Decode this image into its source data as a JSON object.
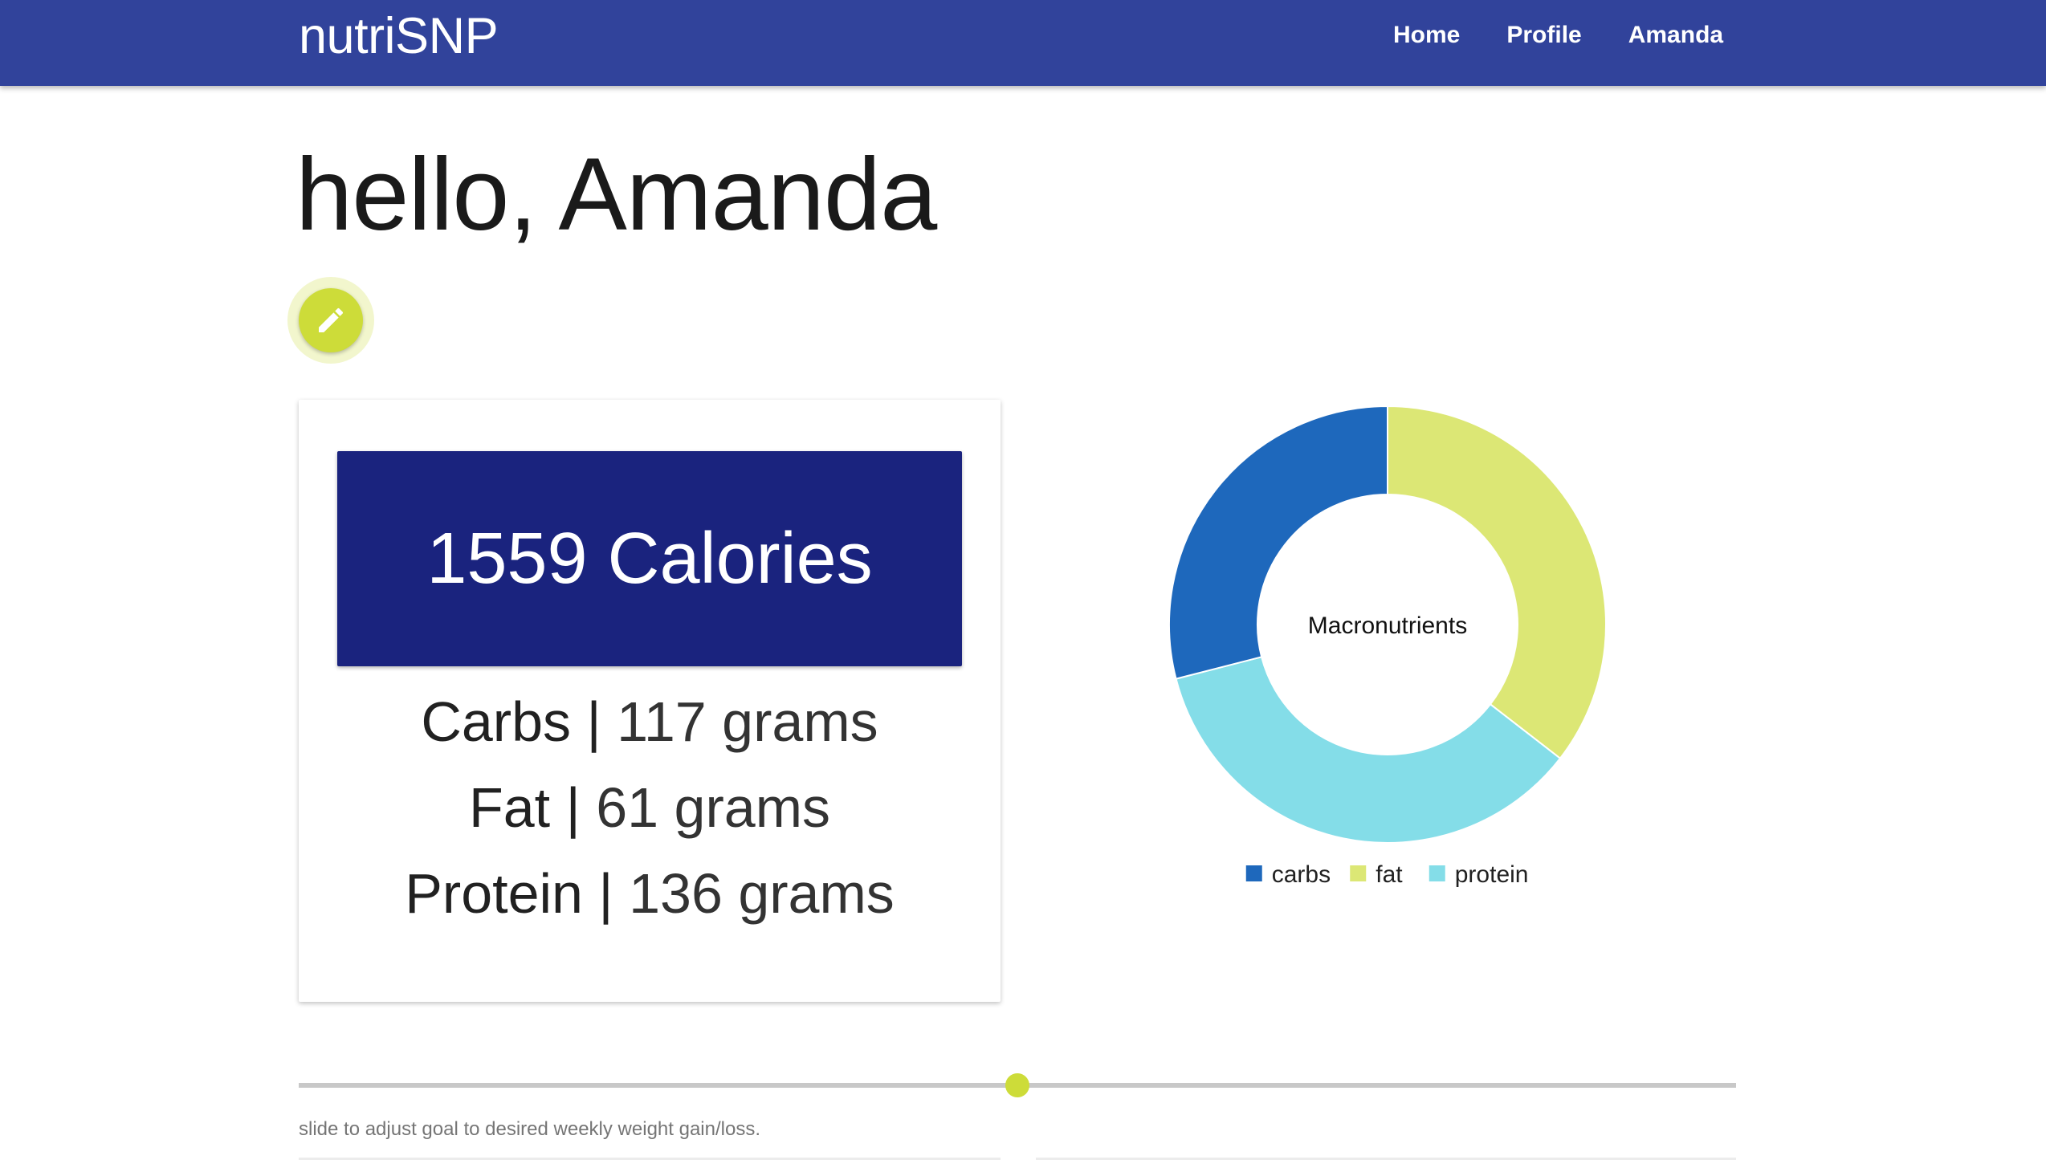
{
  "navbar": {
    "brand": "nutriSNP",
    "links": [
      {
        "label": "Home"
      },
      {
        "label": "Profile"
      },
      {
        "label": "Amanda"
      }
    ],
    "color": "#31439b"
  },
  "greeting": "hello, Amanda",
  "edit_button": {
    "icon": "pencil-icon",
    "color": "#cddc39"
  },
  "calories": {
    "label": "1559 Calories",
    "color": "#1a237e"
  },
  "macros": [
    {
      "name": "Carbs",
      "sep": " | ",
      "value": "117 grams"
    },
    {
      "name": "Fat",
      "sep": " | ",
      "value": "61 grams"
    },
    {
      "name": "Protein",
      "sep": " | ",
      "value": "136 grams"
    }
  ],
  "chart_data": {
    "type": "pie",
    "title": "Macronutrients",
    "donut": true,
    "legend_position": "bottom",
    "start": "top",
    "direction": "clockwise",
    "slices": [
      {
        "label": "fat",
        "value": 0.355,
        "color": "#dce775"
      },
      {
        "label": "protein",
        "value": 0.355,
        "color": "#84dde8"
      },
      {
        "label": "carbs",
        "value": 0.29,
        "color": "#1e68bc"
      }
    ],
    "legend": [
      {
        "label": "carbs",
        "color": "#1e68bc"
      },
      {
        "label": "fat",
        "color": "#dce775"
      },
      {
        "label": "protein",
        "color": "#84dde8"
      }
    ]
  },
  "slider": {
    "value": 0.5,
    "caption": "slide to adjust goal to desired weekly weight gain/loss."
  }
}
